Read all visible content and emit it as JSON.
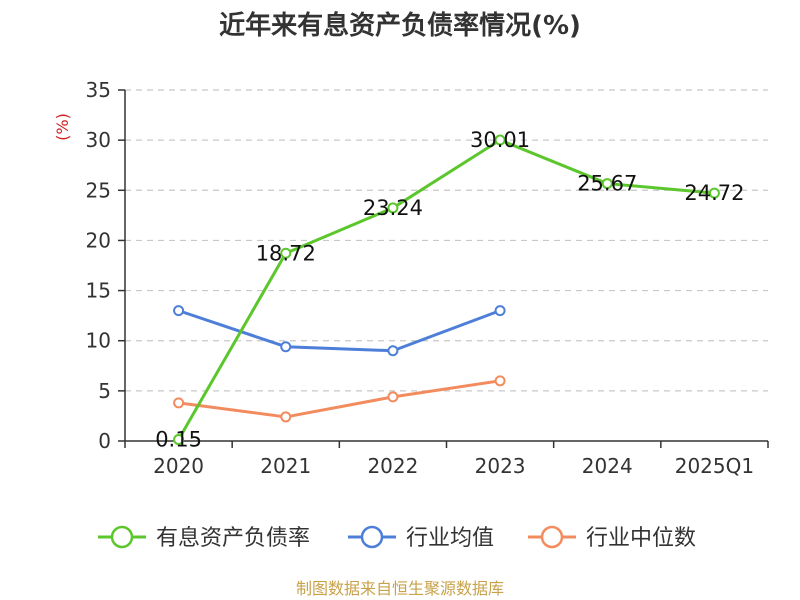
{
  "chart_data": {
    "type": "line",
    "title": "近年来有息资产负债率情况(%)",
    "ylabel": "(%)",
    "categories": [
      "2020",
      "2021",
      "2022",
      "2023",
      "2024",
      "2025Q1"
    ],
    "ylim": [
      0,
      35
    ],
    "yticks": [
      0,
      5,
      10,
      15,
      20,
      25,
      30,
      35
    ],
    "grid": true,
    "legend_position": "bottom",
    "series": [
      {
        "name": "有息资产负债率",
        "color": "#5cc62d",
        "values": [
          0.15,
          18.72,
          23.24,
          30.01,
          25.67,
          24.72
        ],
        "labels": [
          "0.15",
          "18.72",
          "23.24",
          "30.01",
          "25.67",
          "24.72"
        ]
      },
      {
        "name": "行业均值",
        "color": "#4e7fd8",
        "values": [
          13.0,
          9.4,
          9.0,
          13.0,
          null,
          null
        ]
      },
      {
        "name": "行业中位数",
        "color": "#f28c5e",
        "values": [
          3.8,
          2.4,
          4.4,
          6.0,
          null,
          null
        ]
      }
    ],
    "source": "制图数据来自恒生聚源数据库"
  }
}
